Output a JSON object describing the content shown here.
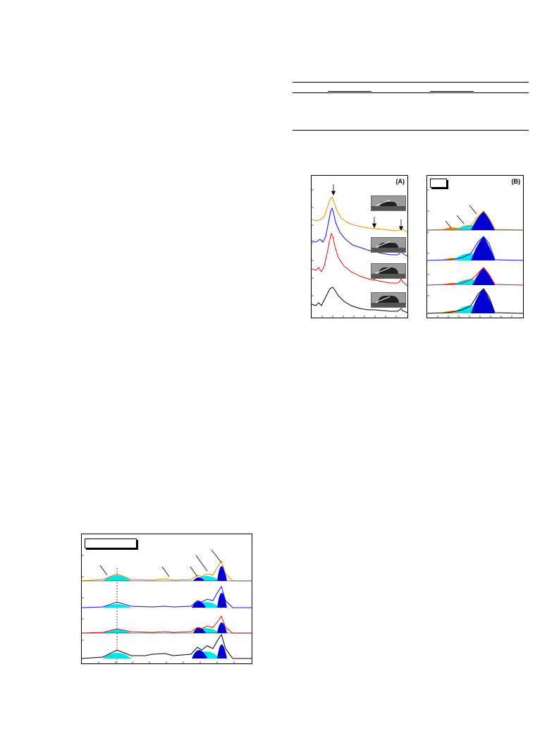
{
  "page": {
    "background": "#ffffff"
  },
  "table_rules": {
    "color": "#000000"
  },
  "panels": {
    "A": {
      "label": "(A)"
    },
    "B": {
      "label": "(B)"
    },
    "C": {
      "label": ""
    }
  },
  "colors": {
    "orange": "#f08c00",
    "blue": "#1010e0",
    "red": "#e01010",
    "black": "#000000",
    "cyan": "#00e5e5",
    "darkblue": "#0000d0",
    "orange_fill": "#f08c00"
  },
  "insets": {
    "icon": "contact-angle-droplet-image",
    "count": 4
  }
}
